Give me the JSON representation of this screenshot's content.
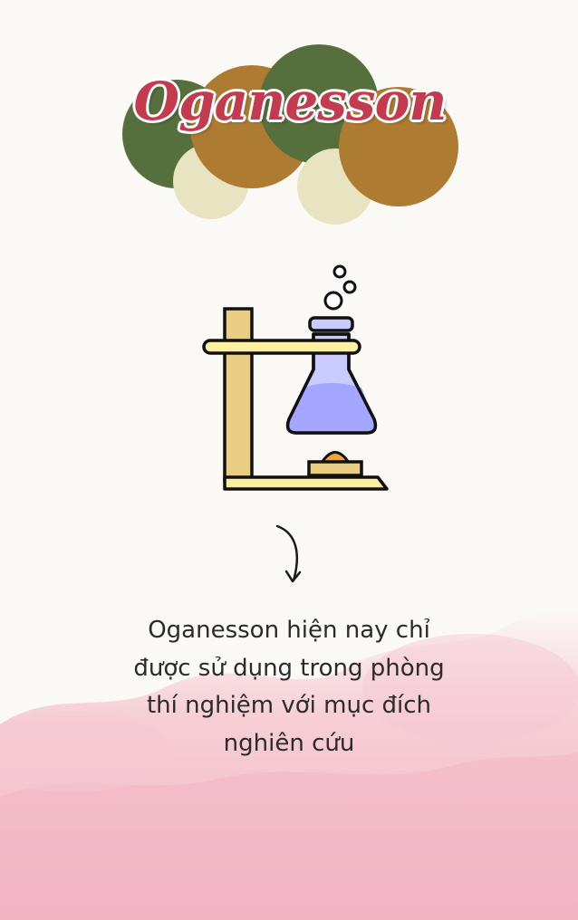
{
  "title": "Oganesson",
  "caption": "Oganesson hiện nay chỉ được sử dụng trong phòng thí nghiệm với mục đích nghiên cứu",
  "colors": {
    "title_text": "#c43a4e",
    "circle_green": "#55703c",
    "circle_brown": "#ad7b32",
    "circle_cream": "#e8e3c1",
    "liquid": "#a4a6ff",
    "stand_wood": "#e9cd82",
    "base_plate": "#fcf0a0",
    "flame": "#f2a33a",
    "pink_cloud": "#f4bcc9",
    "background": "#fbf9f6"
  },
  "icons": {
    "illustration": "lab-flask-stand-icon",
    "arrow": "curved-arrow-down-icon"
  }
}
